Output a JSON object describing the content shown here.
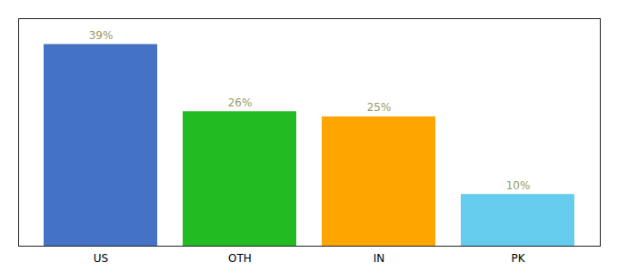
{
  "chart_data": {
    "type": "bar",
    "categories": [
      "US",
      "OTH",
      "IN",
      "PK"
    ],
    "values": [
      39,
      26,
      25,
      10
    ],
    "value_labels": [
      "39%",
      "26%",
      "25%",
      "10%"
    ],
    "colors": [
      "#4472C4",
      "#22BB22",
      "#FFA500",
      "#66CCEE"
    ],
    "ylim": [
      0,
      44
    ],
    "yticks": [],
    "data_labels": true,
    "tick_labels": "x",
    "grid": false
  }
}
